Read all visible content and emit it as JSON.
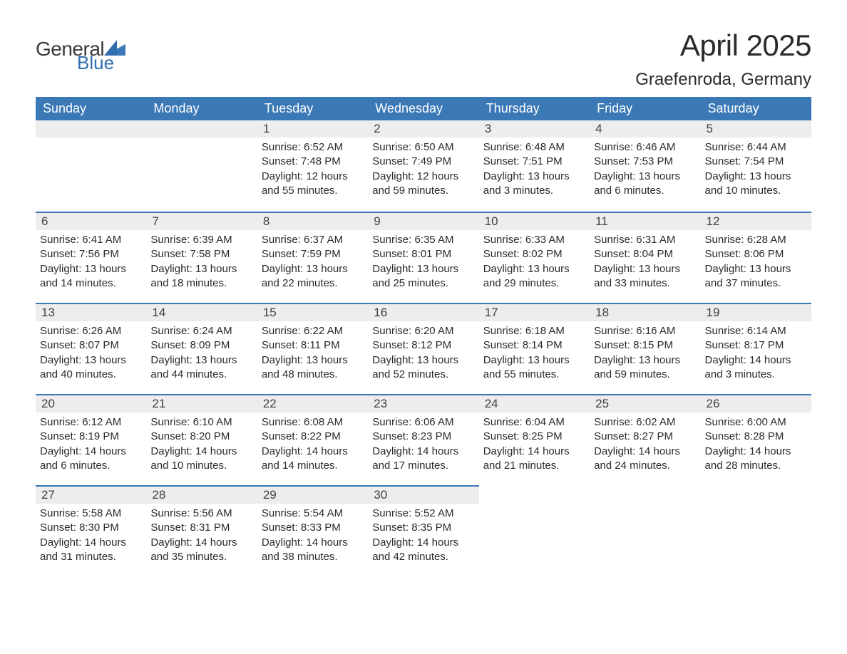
{
  "logo": {
    "text1": "General",
    "text2": "Blue",
    "icon_color": "#3a78b6",
    "text1_color": "#3a3a3a",
    "text2_color": "#2f6fb0"
  },
  "title": "April 2025",
  "location": "Graefenroda, Germany",
  "colors": {
    "header_bg": "#3a78b6",
    "header_text": "#ffffff",
    "daynum_bg": "#ededed",
    "row_divider": "#3a78b6",
    "body_text": "#2a2a2a",
    "page_bg": "#ffffff"
  },
  "dayHeaders": [
    "Sunday",
    "Monday",
    "Tuesday",
    "Wednesday",
    "Thursday",
    "Friday",
    "Saturday"
  ],
  "sunrise_label": "Sunrise",
  "sunset_label": "Sunset",
  "daylight_label": "Daylight",
  "weeks": [
    [
      null,
      null,
      {
        "n": 1,
        "sunrise": "6:52 AM",
        "sunset": "7:48 PM",
        "dh": 12,
        "dm": 55
      },
      {
        "n": 2,
        "sunrise": "6:50 AM",
        "sunset": "7:49 PM",
        "dh": 12,
        "dm": 59
      },
      {
        "n": 3,
        "sunrise": "6:48 AM",
        "sunset": "7:51 PM",
        "dh": 13,
        "dm": 3
      },
      {
        "n": 4,
        "sunrise": "6:46 AM",
        "sunset": "7:53 PM",
        "dh": 13,
        "dm": 6
      },
      {
        "n": 5,
        "sunrise": "6:44 AM",
        "sunset": "7:54 PM",
        "dh": 13,
        "dm": 10
      }
    ],
    [
      {
        "n": 6,
        "sunrise": "6:41 AM",
        "sunset": "7:56 PM",
        "dh": 13,
        "dm": 14
      },
      {
        "n": 7,
        "sunrise": "6:39 AM",
        "sunset": "7:58 PM",
        "dh": 13,
        "dm": 18
      },
      {
        "n": 8,
        "sunrise": "6:37 AM",
        "sunset": "7:59 PM",
        "dh": 13,
        "dm": 22
      },
      {
        "n": 9,
        "sunrise": "6:35 AM",
        "sunset": "8:01 PM",
        "dh": 13,
        "dm": 25
      },
      {
        "n": 10,
        "sunrise": "6:33 AM",
        "sunset": "8:02 PM",
        "dh": 13,
        "dm": 29
      },
      {
        "n": 11,
        "sunrise": "6:31 AM",
        "sunset": "8:04 PM",
        "dh": 13,
        "dm": 33
      },
      {
        "n": 12,
        "sunrise": "6:28 AM",
        "sunset": "8:06 PM",
        "dh": 13,
        "dm": 37
      }
    ],
    [
      {
        "n": 13,
        "sunrise": "6:26 AM",
        "sunset": "8:07 PM",
        "dh": 13,
        "dm": 40
      },
      {
        "n": 14,
        "sunrise": "6:24 AM",
        "sunset": "8:09 PM",
        "dh": 13,
        "dm": 44
      },
      {
        "n": 15,
        "sunrise": "6:22 AM",
        "sunset": "8:11 PM",
        "dh": 13,
        "dm": 48
      },
      {
        "n": 16,
        "sunrise": "6:20 AM",
        "sunset": "8:12 PM",
        "dh": 13,
        "dm": 52
      },
      {
        "n": 17,
        "sunrise": "6:18 AM",
        "sunset": "8:14 PM",
        "dh": 13,
        "dm": 55
      },
      {
        "n": 18,
        "sunrise": "6:16 AM",
        "sunset": "8:15 PM",
        "dh": 13,
        "dm": 59
      },
      {
        "n": 19,
        "sunrise": "6:14 AM",
        "sunset": "8:17 PM",
        "dh": 14,
        "dm": 3
      }
    ],
    [
      {
        "n": 20,
        "sunrise": "6:12 AM",
        "sunset": "8:19 PM",
        "dh": 14,
        "dm": 6
      },
      {
        "n": 21,
        "sunrise": "6:10 AM",
        "sunset": "8:20 PM",
        "dh": 14,
        "dm": 10
      },
      {
        "n": 22,
        "sunrise": "6:08 AM",
        "sunset": "8:22 PM",
        "dh": 14,
        "dm": 14
      },
      {
        "n": 23,
        "sunrise": "6:06 AM",
        "sunset": "8:23 PM",
        "dh": 14,
        "dm": 17
      },
      {
        "n": 24,
        "sunrise": "6:04 AM",
        "sunset": "8:25 PM",
        "dh": 14,
        "dm": 21
      },
      {
        "n": 25,
        "sunrise": "6:02 AM",
        "sunset": "8:27 PM",
        "dh": 14,
        "dm": 24
      },
      {
        "n": 26,
        "sunrise": "6:00 AM",
        "sunset": "8:28 PM",
        "dh": 14,
        "dm": 28
      }
    ],
    [
      {
        "n": 27,
        "sunrise": "5:58 AM",
        "sunset": "8:30 PM",
        "dh": 14,
        "dm": 31
      },
      {
        "n": 28,
        "sunrise": "5:56 AM",
        "sunset": "8:31 PM",
        "dh": 14,
        "dm": 35
      },
      {
        "n": 29,
        "sunrise": "5:54 AM",
        "sunset": "8:33 PM",
        "dh": 14,
        "dm": 38
      },
      {
        "n": 30,
        "sunrise": "5:52 AM",
        "sunset": "8:35 PM",
        "dh": 14,
        "dm": 42
      },
      null,
      null,
      null
    ]
  ]
}
